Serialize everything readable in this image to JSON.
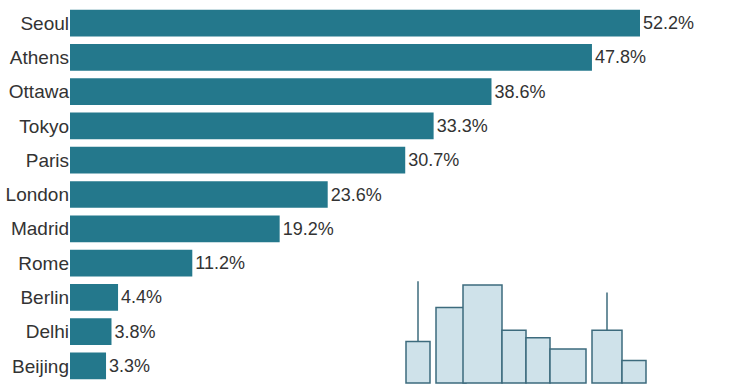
{
  "chart_data": {
    "type": "bar",
    "orientation": "horizontal",
    "categories": [
      "Seoul",
      "Athens",
      "Ottawa",
      "Tokyo",
      "Paris",
      "London",
      "Madrid",
      "Rome",
      "Berlin",
      "Delhi",
      "Beijing"
    ],
    "values": [
      52.2,
      47.8,
      38.6,
      33.3,
      30.7,
      23.6,
      19.2,
      11.2,
      4.4,
      3.8,
      3.3
    ],
    "value_labels": [
      "52.2%",
      "47.8%",
      "38.6%",
      "33.3%",
      "30.7%",
      "23.6%",
      "19.2%",
      "11.2%",
      "4.4%",
      "3.8%",
      "3.3%"
    ],
    "color": "#24788c",
    "data_labels": true,
    "tick_labels": "y",
    "grid": false
  }
}
